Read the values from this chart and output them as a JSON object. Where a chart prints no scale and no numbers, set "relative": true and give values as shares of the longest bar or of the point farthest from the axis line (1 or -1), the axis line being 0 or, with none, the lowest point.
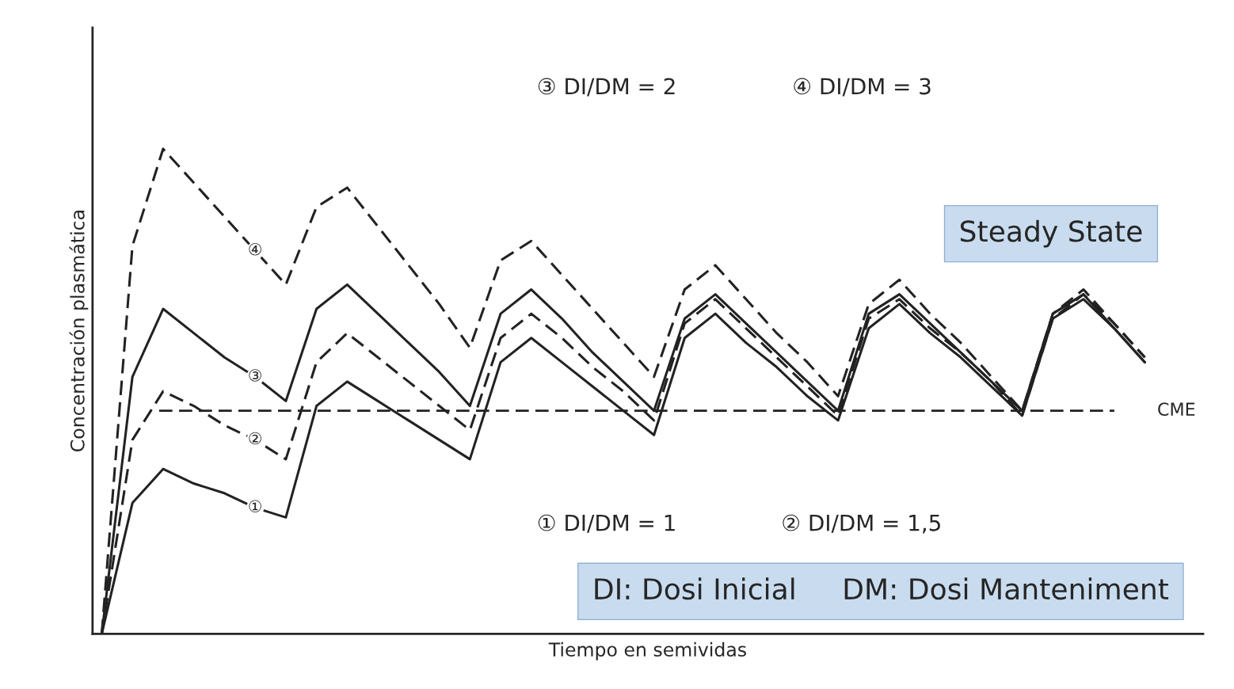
{
  "chart_data": {
    "type": "line",
    "relative": true,
    "xlabel": "Tiempo en semividas",
    "ylabel": "Concentración plasmática",
    "categories": [
      null,
      null,
      null,
      null,
      null,
      null,
      null,
      null,
      null,
      null,
      null,
      null,
      null,
      null,
      null,
      null,
      null,
      null,
      null,
      null,
      null,
      null,
      null,
      null,
      null,
      null,
      null,
      null,
      null,
      null,
      null,
      null,
      null,
      null,
      null
    ],
    "series": [
      {
        "name": "①",
        "color": "#222222",
        "line_style": "solid",
        "values": [
          0,
          0.27,
          0.34,
          0.31,
          0.29,
          0.26,
          0.24,
          0.47,
          0.52,
          0.48,
          0.44,
          0.4,
          0.36,
          0.56,
          0.61,
          0.56,
          0.51,
          0.46,
          0.41,
          0.61,
          0.66,
          0.6,
          0.55,
          0.49,
          0.44,
          0.63,
          0.68,
          0.62,
          0.57,
          0.51,
          0.45,
          0.65,
          0.69,
          0.63,
          0.56
        ]
      },
      {
        "name": "②",
        "color": "#222222",
        "line_style": "dashed",
        "values": [
          0,
          0.4,
          0.5,
          0.47,
          0.43,
          0.4,
          0.36,
          0.56,
          0.62,
          0.57,
          0.52,
          0.47,
          0.42,
          0.61,
          0.66,
          0.61,
          0.55,
          0.5,
          0.44,
          0.64,
          0.69,
          0.63,
          0.57,
          0.51,
          0.45,
          0.65,
          0.69,
          0.63,
          0.58,
          0.52,
          0.45,
          0.65,
          0.7,
          0.64,
          0.57
        ]
      },
      {
        "name": "③",
        "color": "#222222",
        "line_style": "solid",
        "values": [
          0,
          0.53,
          0.67,
          0.62,
          0.57,
          0.53,
          0.48,
          0.67,
          0.72,
          0.66,
          0.6,
          0.54,
          0.47,
          0.66,
          0.71,
          0.65,
          0.58,
          0.52,
          0.46,
          0.65,
          0.7,
          0.64,
          0.58,
          0.52,
          0.46,
          0.66,
          0.7,
          0.64,
          0.58,
          0.52,
          0.46,
          0.66,
          0.7,
          0.63,
          0.56
        ]
      },
      {
        "name": "④",
        "color": "#222222",
        "line_style": "dashed",
        "values": [
          0,
          0.8,
          1,
          0.93,
          0.86,
          0.79,
          0.72,
          0.88,
          0.92,
          0.84,
          0.76,
          0.68,
          0.59,
          0.77,
          0.81,
          0.74,
          0.67,
          0.6,
          0.53,
          0.71,
          0.76,
          0.69,
          0.62,
          0.56,
          0.49,
          0.68,
          0.73,
          0.66,
          0.6,
          0.53,
          0.46,
          0.66,
          0.71,
          0.64,
          0.57
        ]
      }
    ],
    "ref_lines": [
      {
        "axis": "y",
        "value": 0.46,
        "label": "CME",
        "color": "#222222",
        "line_style": "dashed"
      }
    ],
    "annotations": [
      "③ DI/DM = 2",
      "④ DI/DM = 3",
      "① DI/DM = 1",
      "② DI/DM = 1,5",
      "Steady State",
      "DI: Dosi Inicial     DM: Dosi Manteniment"
    ],
    "legend": false,
    "grid": false
  }
}
